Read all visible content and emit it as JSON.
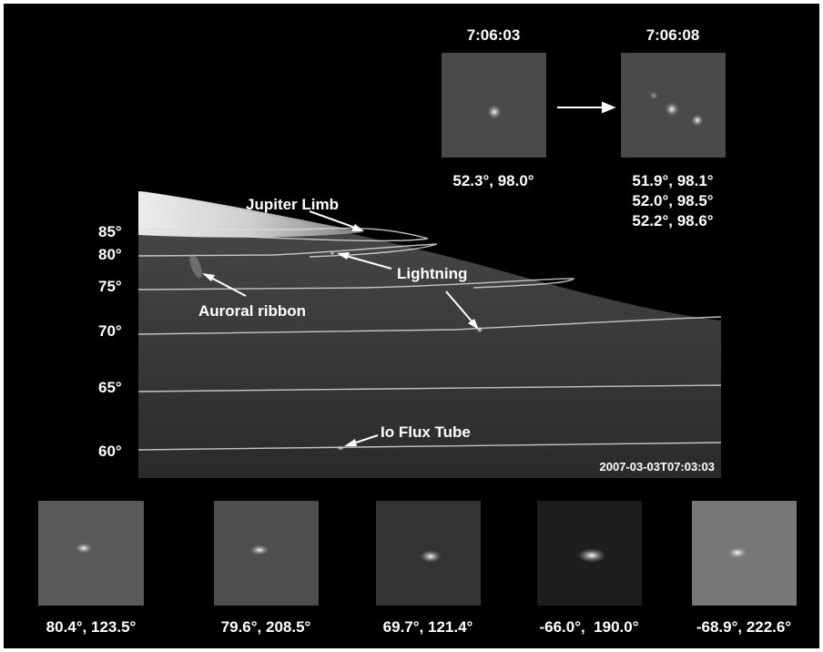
{
  "top_insets": [
    {
      "time": "7:06:03",
      "coords": [
        "52.3°, 98.0°"
      ]
    },
    {
      "time": "7:06:08",
      "coords": [
        "51.9°, 98.1°",
        "52.0°, 98.5°",
        "52.2°, 98.6°"
      ]
    }
  ],
  "latitudes": [
    "85°",
    "80°",
    "75°",
    "70°",
    "65°",
    "60°"
  ],
  "annotations": {
    "limb": "Jupiter Limb",
    "lightning": "Lightning",
    "aurora": "Auroral ribbon",
    "io": "Io Flux Tube"
  },
  "timestamp": "2007-03-03T07:03:03",
  "bottom_insets": [
    "80.4°, 123.5°",
    "79.6°, 208.5°",
    "69.7°, 121.4°",
    "-66.0°,  190.0°",
    "-68.9°, 222.6°"
  ]
}
